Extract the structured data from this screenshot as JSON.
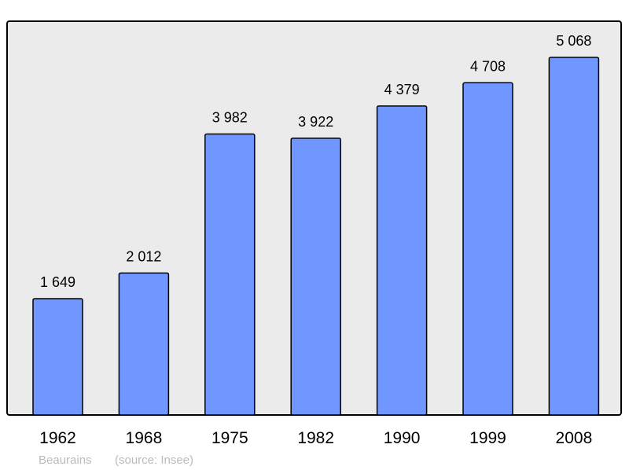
{
  "chart_data": {
    "type": "bar",
    "categories": [
      "1962",
      "1968",
      "1975",
      "1982",
      "1990",
      "1999",
      "2008"
    ],
    "values": [
      1649,
      2012,
      3982,
      3922,
      4379,
      4708,
      5068
    ],
    "value_labels": [
      "1 649",
      "2 012",
      "3 982",
      "3 922",
      "4 379",
      "4 708",
      "5 068"
    ],
    "title": "",
    "xlabel": "",
    "ylabel": "",
    "ylim": [
      0,
      5580
    ],
    "grid": false,
    "bar_color": "#7096ff",
    "background_color": "#ebebeb"
  },
  "caption": {
    "place": "Beaurains",
    "source": "(source: Insee)"
  }
}
